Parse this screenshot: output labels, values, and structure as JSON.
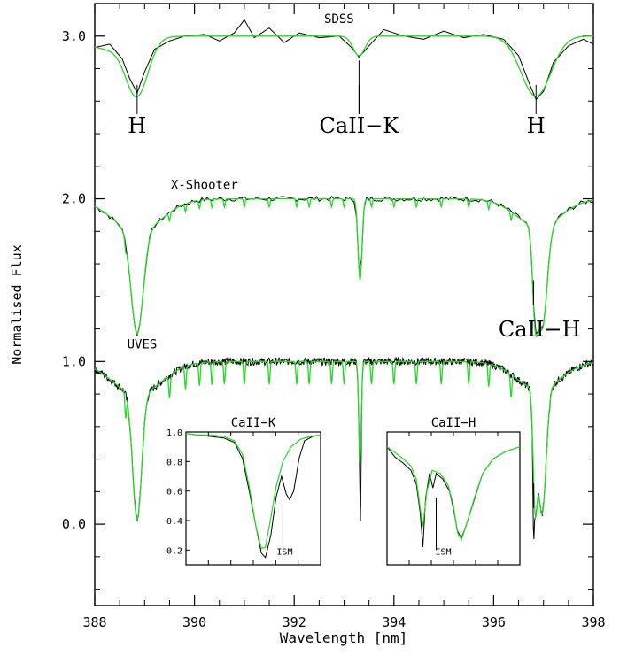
{
  "chart_data": {
    "type": "line",
    "title": "",
    "xlabel": "Wavelength [nm]",
    "ylabel": "Normalised Flux",
    "xlim": [
      388,
      398
    ],
    "ylim": [
      -0.5,
      3.2
    ],
    "x_ticks": [
      388,
      390,
      392,
      394,
      396,
      398
    ],
    "y_ticks": [
      0.0,
      1.0,
      2.0,
      3.0
    ],
    "x_tick_labels": [
      "388",
      "390",
      "392",
      "394",
      "396",
      "398"
    ],
    "y_tick_labels": [
      "0.0",
      "1.0",
      "2.0",
      "3.0"
    ],
    "colors": {
      "observed": "#000000",
      "model": "#22d822"
    },
    "spectra": [
      {
        "label": "SDSS",
        "offset": 3.0,
        "observed": [
          [
            388,
            2.93
          ],
          [
            388.3,
            2.95
          ],
          [
            388.55,
            2.86
          ],
          [
            388.7,
            2.74
          ],
          [
            388.85,
            2.65
          ],
          [
            389.0,
            2.78
          ],
          [
            389.2,
            2.92
          ],
          [
            389.5,
            2.97
          ],
          [
            389.8,
            3.0
          ],
          [
            390.2,
            3.01
          ],
          [
            390.5,
            2.97
          ],
          [
            390.8,
            3.02
          ],
          [
            391.0,
            3.1
          ],
          [
            391.2,
            2.99
          ],
          [
            391.5,
            3.05
          ],
          [
            391.8,
            2.96
          ],
          [
            392.1,
            3.02
          ],
          [
            392.5,
            2.99
          ],
          [
            392.9,
            3.0
          ],
          [
            393.15,
            2.93
          ],
          [
            393.3,
            2.87
          ],
          [
            393.5,
            2.94
          ],
          [
            393.8,
            3.04
          ],
          [
            394.2,
            3.0
          ],
          [
            394.6,
            2.98
          ],
          [
            395.0,
            3.03
          ],
          [
            395.4,
            2.99
          ],
          [
            395.8,
            3.01
          ],
          [
            396.2,
            2.98
          ],
          [
            396.5,
            2.88
          ],
          [
            396.7,
            2.72
          ],
          [
            396.85,
            2.61
          ],
          [
            397.0,
            2.66
          ],
          [
            397.2,
            2.84
          ],
          [
            397.5,
            2.94
          ],
          [
            397.8,
            2.98
          ],
          [
            398,
            2.95
          ]
        ],
        "model_lines": [
          {
            "center": 388.85,
            "depth": 0.33,
            "width": 0.22
          },
          {
            "center": 393.3,
            "depth": 0.12,
            "width": 0.12
          },
          {
            "center": 396.85,
            "depth": 0.37,
            "width": 0.3
          }
        ],
        "line_labels": [
          {
            "text": "H",
            "x": 388.85,
            "y": 2.45
          },
          {
            "text": "CaII−K",
            "x": 393.3,
            "y": 2.45
          },
          {
            "text": "H",
            "x": 396.85,
            "y": 2.45
          }
        ]
      },
      {
        "label": "X-Shooter",
        "offset": 2.0,
        "model_lines": [
          {
            "center": 388.85,
            "depth": 0.63,
            "width": 0.12
          },
          {
            "center": 393.32,
            "depth": 0.5,
            "width": 0.04
          },
          {
            "center": 396.83,
            "depth": 0.4,
            "width": 0.05
          },
          {
            "center": 396.97,
            "depth": 0.63,
            "width": 0.1
          }
        ],
        "line_labels": [
          {
            "text": "CaII−H",
            "x": 396.85,
            "y": 1.23
          }
        ]
      },
      {
        "label": "UVES",
        "offset": 1.0,
        "model_lines": [
          {
            "center": 388.85,
            "depth": 0.77,
            "width": 0.09
          },
          {
            "center": 393.32,
            "depth": 0.62,
            "width": 0.025
          },
          {
            "center": 396.83,
            "depth": 0.6,
            "width": 0.04
          },
          {
            "center": 396.97,
            "depth": 0.77,
            "width": 0.08
          }
        ]
      }
    ],
    "insets": [
      {
        "title": "CaII−K",
        "ylim": [
          0.1,
          1.0
        ],
        "y_tick_labels": [
          "1.0",
          "0.8",
          "0.6",
          "0.4",
          "0.2"
        ],
        "annotation": "ISM",
        "observed": [
          [
            0,
            0.99
          ],
          [
            0.08,
            0.98
          ],
          [
            0.18,
            0.97
          ],
          [
            0.28,
            0.96
          ],
          [
            0.36,
            0.93
          ],
          [
            0.42,
            0.82
          ],
          [
            0.47,
            0.6
          ],
          [
            0.52,
            0.36
          ],
          [
            0.56,
            0.18
          ],
          [
            0.59,
            0.15
          ],
          [
            0.63,
            0.3
          ],
          [
            0.67,
            0.56
          ],
          [
            0.71,
            0.7
          ],
          [
            0.745,
            0.58
          ],
          [
            0.77,
            0.54
          ],
          [
            0.8,
            0.6
          ],
          [
            0.84,
            0.82
          ],
          [
            0.88,
            0.94
          ],
          [
            0.94,
            0.97
          ],
          [
            1,
            0.98
          ]
        ],
        "model": [
          [
            0,
            0.99
          ],
          [
            0.08,
            0.98
          ],
          [
            0.18,
            0.98
          ],
          [
            0.28,
            0.97
          ],
          [
            0.36,
            0.94
          ],
          [
            0.42,
            0.85
          ],
          [
            0.47,
            0.63
          ],
          [
            0.52,
            0.36
          ],
          [
            0.56,
            0.21
          ],
          [
            0.59,
            0.22
          ],
          [
            0.63,
            0.42
          ],
          [
            0.67,
            0.63
          ],
          [
            0.72,
            0.8
          ],
          [
            0.78,
            0.9
          ],
          [
            0.85,
            0.95
          ],
          [
            0.92,
            0.97
          ],
          [
            1,
            0.98
          ]
        ]
      },
      {
        "title": "CaII−H",
        "ylim": [
          0.1,
          1.0
        ],
        "annotation": "ISM",
        "observed": [
          [
            0,
            0.9
          ],
          [
            0.06,
            0.83
          ],
          [
            0.12,
            0.79
          ],
          [
            0.18,
            0.74
          ],
          [
            0.22,
            0.65
          ],
          [
            0.25,
            0.45
          ],
          [
            0.27,
            0.22
          ],
          [
            0.29,
            0.55
          ],
          [
            0.32,
            0.72
          ],
          [
            0.345,
            0.62
          ],
          [
            0.37,
            0.72
          ],
          [
            0.42,
            0.68
          ],
          [
            0.47,
            0.6
          ],
          [
            0.5,
            0.48
          ],
          [
            0.53,
            0.33
          ],
          [
            0.56,
            0.28
          ],
          [
            0.6,
            0.38
          ],
          [
            0.66,
            0.55
          ],
          [
            0.72,
            0.72
          ],
          [
            0.8,
            0.82
          ],
          [
            0.9,
            0.87
          ],
          [
            1,
            0.9
          ]
        ],
        "model": [
          [
            0,
            0.9
          ],
          [
            0.06,
            0.86
          ],
          [
            0.12,
            0.82
          ],
          [
            0.18,
            0.77
          ],
          [
            0.22,
            0.68
          ],
          [
            0.25,
            0.48
          ],
          [
            0.27,
            0.36
          ],
          [
            0.3,
            0.6
          ],
          [
            0.34,
            0.74
          ],
          [
            0.4,
            0.72
          ],
          [
            0.46,
            0.64
          ],
          [
            0.5,
            0.5
          ],
          [
            0.53,
            0.32
          ],
          [
            0.56,
            0.27
          ],
          [
            0.6,
            0.38
          ],
          [
            0.66,
            0.56
          ],
          [
            0.72,
            0.72
          ],
          [
            0.8,
            0.82
          ],
          [
            0.9,
            0.87
          ],
          [
            1,
            0.9
          ]
        ]
      }
    ]
  }
}
